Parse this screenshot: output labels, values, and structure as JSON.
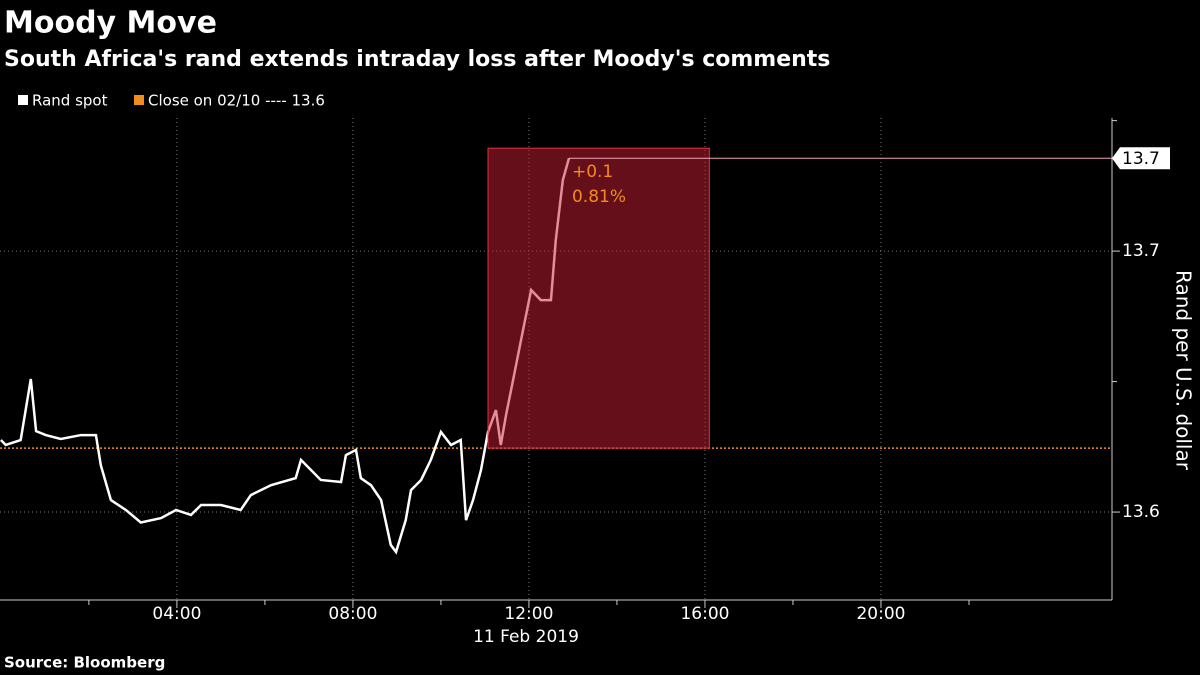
{
  "chart_data": {
    "type": "line",
    "title": "Moody Move",
    "subtitle": "South Africa's rand extends intraday loss after Moody's comments",
    "y_label": "Rand per U.S. dollar",
    "x_label": "11 Feb 2019",
    "source": "Source: Bloomberg",
    "x": [
      0,
      0.11,
      0.45,
      0.68,
      0.8,
      1.02,
      1.36,
      1.82,
      2.16,
      2.27,
      2.5,
      2.84,
      3.18,
      3.64,
      3.98,
      4.32,
      4.55,
      5.0,
      5.45,
      5.68,
      6.14,
      6.7,
      6.82,
      7.27,
      7.73,
      7.84,
      8.07,
      8.18,
      8.41,
      8.64,
      8.86,
      8.98,
      9.2,
      9.32,
      9.55,
      9.77,
      10.0,
      10.23,
      10.45,
      10.57,
      10.73,
      10.91,
      11.07,
      11.25,
      11.36,
      11.48,
      11.64,
      11.82,
      12.05,
      12.27,
      12.5,
      12.61,
      12.77,
      12.91
    ],
    "series": [
      {
        "name": "Rand spot",
        "color": "#ffffff",
        "values": [
          13.6276,
          13.6257,
          13.6276,
          13.651,
          13.631,
          13.6295,
          13.628,
          13.6295,
          13.6295,
          13.618,
          13.6046,
          13.6008,
          13.596,
          13.5977,
          13.6008,
          13.5989,
          13.6027,
          13.6027,
          13.6008,
          13.6065,
          13.6103,
          13.613,
          13.62,
          13.6123,
          13.6115,
          13.6218,
          13.6238,
          13.613,
          13.6103,
          13.6046,
          13.5874,
          13.5847,
          13.5969,
          13.6084,
          13.6123,
          13.62,
          13.6307,
          13.6257,
          13.6276,
          13.5969,
          13.6046,
          13.6161,
          13.6307,
          13.6391,
          13.6257,
          13.6372,
          13.6506,
          13.6659,
          13.6851,
          13.6812,
          13.6812,
          13.7042,
          13.7272,
          13.7356
        ]
      }
    ],
    "reference_line": {
      "name": "Close on 02/10 ---- 13.6",
      "value": 13.6245,
      "color": "#f28c1e"
    },
    "last_value_label": "13.7",
    "annotation": {
      "texts": [
        "+0.1",
        "0.81%"
      ],
      "x_range": [
        11.07,
        16.1
      ],
      "color": "#f28c1e"
    },
    "xlim": [
      -0.02,
      25.25
    ],
    "xticks": [
      {
        "value": 4,
        "label": "04:00"
      },
      {
        "value": 8,
        "label": "08:00"
      },
      {
        "value": 12,
        "label": "12:00"
      },
      {
        "value": 16,
        "label": "16:00"
      },
      {
        "value": 20,
        "label": "20:00"
      }
    ],
    "xticks_minor": [
      2,
      6,
      10,
      14,
      18,
      22
    ],
    "ylim": [
      13.5663,
      13.751
    ],
    "yticks": [
      13.6,
      13.7
    ],
    "yticks_minor": [
      13.65,
      13.75
    ],
    "grid": true
  }
}
